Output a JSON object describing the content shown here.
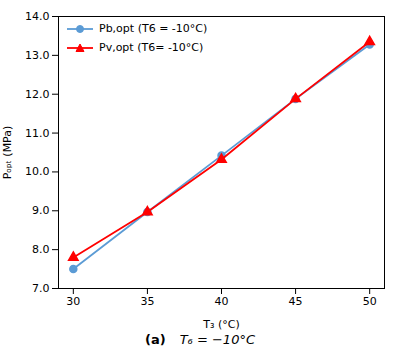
{
  "chart_data": {
    "type": "line",
    "xlabel": "T₃ (°C)",
    "ylabel": "Pₒₚₜ (MPa)",
    "annotations": [
      "(a)",
      "T₆ = −10°C"
    ],
    "x": [
      30,
      35,
      40,
      45,
      50
    ],
    "series": [
      {
        "name": "Pb,opt (T6 = -10°C)",
        "color": "#5B9BD5",
        "marker": "circle",
        "values": [
          7.5,
          8.97,
          10.42,
          11.88,
          13.28
        ]
      },
      {
        "name": "Pv,opt (T6= -10°C)",
        "color": "#FF0000",
        "marker": "triangle",
        "values": [
          7.8,
          8.97,
          10.32,
          11.88,
          13.35
        ]
      }
    ],
    "xlim": [
      29,
      51
    ],
    "ylim": [
      7.0,
      14.0
    ],
    "xticks": [
      30,
      35,
      40,
      45,
      50
    ],
    "yticks": [
      {
        "value": 7.0,
        "label": "7.0"
      },
      {
        "value": 8.0,
        "label": "8.0"
      },
      {
        "value": 9.0,
        "label": "9.0"
      },
      {
        "value": 10.0,
        "label": "10.0"
      },
      {
        "value": 11.0,
        "label": "11.0"
      },
      {
        "value": 12.0,
        "label": "12.0"
      },
      {
        "value": 13.0,
        "label": "13.0"
      },
      {
        "value": 14.0,
        "label": "14.0"
      }
    ],
    "grid": false,
    "legend": "upper left"
  }
}
